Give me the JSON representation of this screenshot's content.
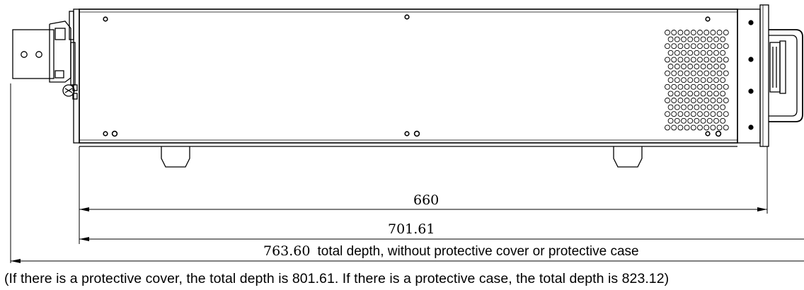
{
  "dimensions": {
    "body_depth": "660",
    "depth_with_handles": "701.61",
    "total_depth": "763.60",
    "total_depth_description": "total depth, without protective  cover or protective  case"
  },
  "note": "(If  there is a protective  cover, the total depth is 801.61.  If there is a protective  case, the total depth is 823.12)",
  "colors": {
    "line": "#000000",
    "background": "#ffffff"
  }
}
